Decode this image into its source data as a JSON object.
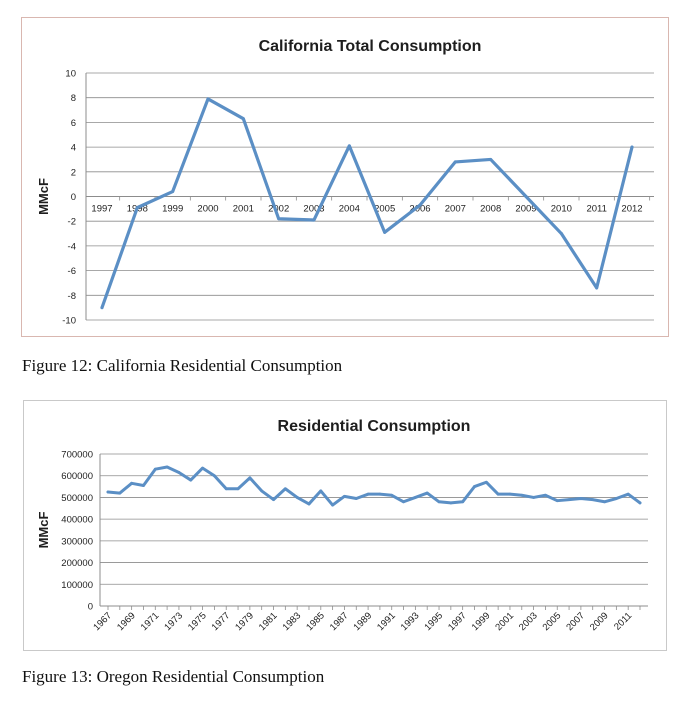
{
  "figures": [
    {
      "caption": "Figure 12: California Residential Consumption"
    },
    {
      "caption": "Figure 13: Oregon Residential Consumption"
    }
  ],
  "colors": {
    "series": "#5b8fc5",
    "grid": "#8c8c8c",
    "axis": "#8c8c8c",
    "border1": "#d9b7b0",
    "border2": "#c9c9c9"
  },
  "chart_data": [
    {
      "type": "line",
      "title": "California Total Consumption",
      "ylabel": "MMcF",
      "xlabel": "",
      "ylim": [
        -10,
        10
      ],
      "yticks": [
        10,
        8,
        6,
        4,
        2,
        0,
        -2,
        -4,
        -6,
        -8,
        -10
      ],
      "grid": true,
      "legend": "none",
      "x": [
        "1997",
        "1998",
        "1999",
        "2000",
        "2001",
        "2002",
        "2003",
        "2004",
        "2005",
        "2006",
        "2007",
        "2008",
        "2009",
        "2010",
        "2011",
        "2012"
      ],
      "series": [
        {
          "values": [
            -9.0,
            -0.9,
            0.4,
            7.9,
            6.3,
            -1.8,
            -1.9,
            4.1,
            -2.9,
            -0.7,
            2.8,
            3.0,
            0.0,
            -3.0,
            -7.4,
            4.0
          ]
        }
      ]
    },
    {
      "type": "line",
      "title": "Residential Consumption",
      "ylabel": "MMcF",
      "xlabel": "",
      "ylim": [
        0,
        700000
      ],
      "yticks": [
        700000,
        600000,
        500000,
        400000,
        300000,
        200000,
        100000,
        0
      ],
      "grid": true,
      "legend": "none",
      "x": [
        "1967",
        "1968",
        "1969",
        "1970",
        "1971",
        "1972",
        "1973",
        "1974",
        "1975",
        "1976",
        "1977",
        "1978",
        "1979",
        "1980",
        "1981",
        "1982",
        "1983",
        "1984",
        "1985",
        "1986",
        "1987",
        "1988",
        "1989",
        "1990",
        "1991",
        "1992",
        "1993",
        "1994",
        "1995",
        "1996",
        "1997",
        "1998",
        "1999",
        "2000",
        "2001",
        "2002",
        "2003",
        "2004",
        "2005",
        "2006",
        "2007",
        "2008",
        "2009",
        "2010",
        "2011",
        "2012"
      ],
      "xticks_shown": [
        "1967",
        "1969",
        "1971",
        "1973",
        "1975",
        "1977",
        "1979",
        "1981",
        "1983",
        "1985",
        "1987",
        "1989",
        "1991",
        "1993",
        "1995",
        "1997",
        "1999",
        "2001",
        "2003",
        "2005",
        "2007",
        "2009",
        "2011"
      ],
      "series": [
        {
          "values": [
            525000,
            520000,
            565000,
            555000,
            630000,
            640000,
            615000,
            580000,
            635000,
            600000,
            540000,
            540000,
            590000,
            530000,
            490000,
            540000,
            500000,
            470000,
            530000,
            465000,
            505000,
            495000,
            515000,
            515000,
            510000,
            480000,
            500000,
            520000,
            480000,
            475000,
            480000,
            550000,
            570000,
            515000,
            515000,
            510000,
            500000,
            510000,
            485000,
            490000,
            495000,
            490000,
            480000,
            495000,
            515000,
            475000
          ]
        }
      ]
    }
  ]
}
